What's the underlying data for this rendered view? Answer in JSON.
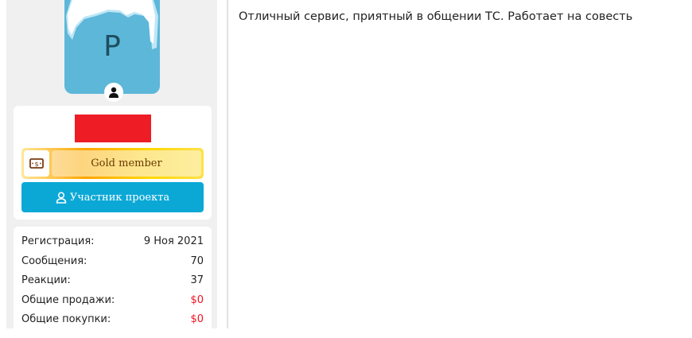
{
  "user": {
    "avatar_letter": "P",
    "banner_label": "Gold member",
    "role_label": "Участник проекта"
  },
  "stats": [
    {
      "label": "Регистрация:",
      "value": "9 Ноя 2021"
    },
    {
      "label": "Сообщения:",
      "value": "70"
    },
    {
      "label": "Реакции:",
      "value": "37"
    },
    {
      "label": "Общие продажи:",
      "value": "$0"
    },
    {
      "label": "Общие покупки:",
      "value": "$0"
    }
  ],
  "message": {
    "text": "Отличный сервис, приятный в общении ТС. Работает на совесть"
  },
  "colors": {
    "accent": "#0ba8d6",
    "redacted": "#ee1c25",
    "money": "#f01020"
  }
}
